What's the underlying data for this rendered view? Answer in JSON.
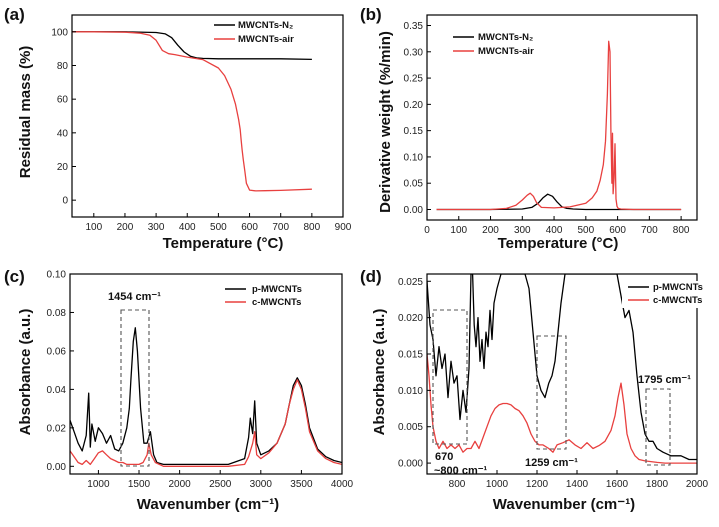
{
  "colors": {
    "black_series": "#000000",
    "red_series": "#e8403f"
  },
  "panels": [
    {
      "label": "(a)",
      "xlabel": "Temperature (°C)",
      "ylabel": "Residual mass (%)",
      "legend_1": "MWCNTs-N₂",
      "legend_2": "MWCNTs-air"
    },
    {
      "label": "(b)",
      "xlabel": "Temperature (°C)",
      "ylabel": "Derivative weight (%/min)",
      "legend_1": "MWCNTs-N₂",
      "legend_2": "MWCNTs-air"
    },
    {
      "label": "(c)",
      "xlabel": "Wavenumber (cm⁻¹)",
      "ylabel": "Absorbance (a.u.)",
      "legend_1": "p-MWCNTs",
      "legend_2": "c-MWCNTs",
      "annotation_1": "1454 cm⁻¹"
    },
    {
      "label": "(d)",
      "xlabel": "Wavenumber (cm⁻¹)",
      "ylabel": "Absorbance (a.u.)",
      "legend_1": "p-MWCNTs",
      "legend_2": "c-MWCNTs",
      "annotation_1": "670",
      "annotation_2": "~800 cm⁻¹",
      "annotation_3": "1259 cm⁻¹",
      "annotation_4": "1795 cm⁻¹"
    }
  ],
  "chart_data": [
    {
      "type": "line",
      "xlabel": "Temperature (°C)",
      "ylabel": "Residual mass (%)",
      "xlim": [
        30,
        900
      ],
      "ylim": [
        -10,
        110
      ],
      "xticks": [
        100,
        200,
        300,
        400,
        500,
        600,
        700,
        800,
        900
      ],
      "yticks": [
        0,
        20,
        40,
        60,
        80,
        100
      ],
      "legend_position": "top-right",
      "series": [
        {
          "name": "MWCNTs-N₂",
          "color": "#000000",
          "x": [
            30,
            100,
            200,
            300,
            330,
            350,
            370,
            390,
            410,
            430,
            450,
            500,
            600,
            700,
            800
          ],
          "y": [
            100,
            100,
            100,
            99.6,
            98.8,
            96.5,
            92,
            88,
            85.5,
            84.5,
            84.2,
            84,
            84,
            84,
            83.6
          ]
        },
        {
          "name": "MWCNTs-air",
          "color": "#e8403f",
          "x": [
            30,
            100,
            200,
            250,
            280,
            300,
            320,
            340,
            360,
            400,
            450,
            500,
            520,
            540,
            555,
            565,
            570,
            573,
            576,
            580,
            585,
            590,
            600,
            620,
            650,
            700,
            800
          ],
          "y": [
            100,
            100,
            99.8,
            99.2,
            98,
            95,
            89,
            87,
            86.5,
            85,
            83.5,
            78.5,
            74,
            66,
            57,
            48,
            42,
            36,
            30,
            24,
            17,
            10,
            6,
            5.5,
            5.6,
            5.8,
            6.5
          ]
        }
      ]
    },
    {
      "type": "line",
      "xlabel": "Temperature (°C)",
      "ylabel": "Derivative weight (%/min)",
      "xlim": [
        0,
        850
      ],
      "ylim": [
        -0.02,
        0.37
      ],
      "xticks": [
        0,
        100,
        200,
        300,
        400,
        500,
        600,
        700,
        800
      ],
      "yticks": [
        0.0,
        0.05,
        0.1,
        0.15,
        0.2,
        0.25,
        0.3,
        0.35
      ],
      "legend_position": "top-left",
      "series": [
        {
          "name": "MWCNTs-N₂",
          "color": "#000000",
          "x": [
            30,
            100,
            200,
            300,
            330,
            350,
            365,
            380,
            395,
            410,
            425,
            440,
            460,
            500,
            600,
            700,
            800
          ],
          "y": [
            0,
            0,
            0,
            0.001,
            0.004,
            0.012,
            0.022,
            0.029,
            0.025,
            0.014,
            0.005,
            0.002,
            0.001,
            0,
            0,
            0,
            0
          ]
        },
        {
          "name": "MWCNTs-air",
          "color": "#e8403f",
          "x": [
            30,
            100,
            200,
            250,
            280,
            300,
            315,
            325,
            335,
            345,
            360,
            400,
            450,
            500,
            520,
            535,
            545,
            555,
            562,
            568,
            572,
            576,
            579,
            582,
            584,
            586,
            589,
            592,
            595,
            598,
            602,
            610,
            650,
            700,
            800
          ],
          "y": [
            0,
            0,
            0,
            0.002,
            0.008,
            0.018,
            0.027,
            0.031,
            0.025,
            0.013,
            0.004,
            0.003,
            0.005,
            0.012,
            0.022,
            0.035,
            0.055,
            0.085,
            0.13,
            0.22,
            0.32,
            0.3,
            0.15,
            0.05,
            0.145,
            0.03,
            0.06,
            0.125,
            0.02,
            0.006,
            0.002,
            0.001,
            0,
            0,
            0
          ]
        }
      ]
    },
    {
      "type": "line",
      "xlabel": "Wavenumber (cm⁻¹)",
      "ylabel": "Absorbance (a.u.)",
      "xlim": [
        650,
        4000
      ],
      "ylim": [
        -0.004,
        0.1
      ],
      "xticks": [
        1000,
        1500,
        2000,
        2500,
        3000,
        3500,
        4000
      ],
      "yticks": [
        0.0,
        0.02,
        0.04,
        0.06,
        0.08,
        0.1
      ],
      "legend_position": "top-right",
      "annotations": [
        "1454 cm⁻¹"
      ],
      "series": [
        {
          "name": "p-MWCNTs",
          "color": "#000000",
          "x": [
            650,
            700,
            750,
            800,
            850,
            880,
            900,
            920,
            960,
            1000,
            1050,
            1100,
            1150,
            1200,
            1250,
            1300,
            1350,
            1380,
            1400,
            1430,
            1454,
            1480,
            1520,
            1560,
            1600,
            1640,
            1680,
            1720,
            1800,
            2000,
            2200,
            2400,
            2600,
            2800,
            2850,
            2870,
            2900,
            2925,
            2950,
            3000,
            3100,
            3200,
            3300,
            3350,
            3400,
            3450,
            3500,
            3550,
            3600,
            3700,
            3800,
            3900,
            4000
          ],
          "y": [
            0.024,
            0.018,
            0.012,
            0.008,
            0.016,
            0.038,
            0.01,
            0.022,
            0.013,
            0.02,
            0.017,
            0.012,
            0.016,
            0.009,
            0.008,
            0.012,
            0.02,
            0.03,
            0.045,
            0.065,
            0.072,
            0.06,
            0.03,
            0.012,
            0.012,
            0.018,
            0.006,
            0.002,
            0.001,
            0.001,
            0.001,
            0.001,
            0.001,
            0.004,
            0.015,
            0.025,
            0.017,
            0.034,
            0.012,
            0.006,
            0.008,
            0.012,
            0.022,
            0.032,
            0.042,
            0.046,
            0.042,
            0.032,
            0.02,
            0.009,
            0.005,
            0.003,
            0.002
          ]
        },
        {
          "name": "c-MWCNTs",
          "color": "#e8403f",
          "x": [
            650,
            700,
            750,
            800,
            850,
            900,
            950,
            1000,
            1050,
            1100,
            1150,
            1200,
            1250,
            1300,
            1350,
            1400,
            1450,
            1500,
            1550,
            1600,
            1620,
            1650,
            1700,
            1800,
            2000,
            2200,
            2400,
            2600,
            2800,
            2850,
            2900,
            2925,
            2950,
            3000,
            3100,
            3200,
            3300,
            3350,
            3400,
            3450,
            3500,
            3550,
            3600,
            3700,
            3800,
            3900,
            4000
          ],
          "y": [
            0.008,
            0.005,
            0.002,
            0.001,
            0.003,
            0.001,
            0.004,
            0.007,
            0.008,
            0.006,
            0.004,
            0.003,
            0.002,
            0.002,
            0.001,
            0.001,
            0.001,
            0.001,
            0.002,
            0.006,
            0.012,
            0.006,
            0.002,
            0,
            0,
            0,
            0,
            0,
            0.001,
            0.005,
            0.012,
            0.018,
            0.006,
            0.004,
            0.007,
            0.012,
            0.022,
            0.032,
            0.04,
            0.045,
            0.04,
            0.03,
            0.018,
            0.008,
            0.004,
            0.002,
            0.001
          ]
        }
      ]
    },
    {
      "type": "line",
      "xlabel": "Wavenumber (cm⁻¹)",
      "ylabel": "Absorbance (a.u.)",
      "xlim": [
        650,
        2000
      ],
      "ylim": [
        -0.0015,
        0.026
      ],
      "xticks": [
        800,
        1000,
        1200,
        1400,
        1600,
        1800,
        2000
      ],
      "yticks": [
        0.0,
        0.005,
        0.01,
        0.015,
        0.02,
        0.025
      ],
      "legend_position": "top-right",
      "annotations": [
        "670",
        "~800 cm⁻¹",
        "1259 cm⁻¹",
        "1795 cm⁻¹"
      ],
      "series": [
        {
          "name": "p-MWCNTs",
          "color": "#000000",
          "x": [
            650,
            665,
            680,
            695,
            710,
            725,
            740,
            755,
            770,
            785,
            800,
            815,
            830,
            845,
            860,
            870,
            878,
            886,
            895,
            905,
            915,
            925,
            935,
            945,
            955,
            965,
            975,
            985,
            1000,
            1020,
            1040,
            1060,
            1080,
            1100,
            1120,
            1140,
            1160,
            1180,
            1200,
            1220,
            1240,
            1259,
            1275,
            1290,
            1305,
            1320,
            1340,
            1360,
            1380,
            1400,
            1430,
            1460,
            1500,
            1540,
            1580,
            1600,
            1620,
            1640,
            1660,
            1680,
            1700,
            1720,
            1740,
            1760,
            1780,
            1800,
            1830,
            1870,
            1920,
            1960,
            2000
          ],
          "y": [
            0.025,
            0.019,
            0.017,
            0.012,
            0.016,
            0.013,
            0.015,
            0.009,
            0.014,
            0.011,
            0.012,
            0.006,
            0.01,
            0.007,
            0.013,
            0.026,
            0.026,
            0.019,
            0.016,
            0.02,
            0.014,
            0.017,
            0.013,
            0.018,
            0.016,
            0.021,
            0.017,
            0.022,
            0.024,
            0.026,
            0.026,
            0.026,
            0.026,
            0.026,
            0.026,
            0.026,
            0.024,
            0.018,
            0.012,
            0.01,
            0.009,
            0.011,
            0.012,
            0.014,
            0.018,
            0.022,
            0.026,
            0.026,
            0.026,
            0.026,
            0.026,
            0.026,
            0.026,
            0.026,
            0.026,
            0.026,
            0.023,
            0.02,
            0.021,
            0.018,
            0.012,
            0.007,
            0.004,
            0.003,
            0.003,
            0.002,
            0.0015,
            0.001,
            0.001,
            0.0005,
            0.0005
          ]
        },
        {
          "name": "c-MWCNTs",
          "color": "#e8403f",
          "x": [
            650,
            660,
            670,
            680,
            695,
            710,
            730,
            750,
            770,
            790,
            810,
            830,
            850,
            870,
            890,
            910,
            930,
            950,
            970,
            990,
            1010,
            1030,
            1050,
            1070,
            1090,
            1110,
            1130,
            1150,
            1170,
            1190,
            1210,
            1230,
            1259,
            1280,
            1300,
            1330,
            1360,
            1390,
            1420,
            1450,
            1480,
            1510,
            1540,
            1570,
            1590,
            1605,
            1620,
            1635,
            1650,
            1670,
            1690,
            1710,
            1740,
            1770,
            1800,
            1840,
            1880,
            1920,
            1960,
            2000
          ],
          "y": [
            0.015,
            0.012,
            0.008,
            0.005,
            0.003,
            0.002,
            0.003,
            0.002,
            0.0025,
            0.002,
            0.0025,
            0.0015,
            0.002,
            0.002,
            0.003,
            0.002,
            0.0035,
            0.005,
            0.0065,
            0.0075,
            0.008,
            0.0082,
            0.0082,
            0.008,
            0.0075,
            0.0072,
            0.0065,
            0.0055,
            0.004,
            0.003,
            0.0025,
            0.0025,
            0.002,
            0.0015,
            0.0025,
            0.0028,
            0.0032,
            0.0025,
            0.002,
            0.0028,
            0.002,
            0.0024,
            0.003,
            0.0045,
            0.0065,
            0.009,
            0.011,
            0.008,
            0.004,
            0.002,
            0.001,
            0.0005,
            0.0003,
            0.0002,
            0.0001,
            0,
            0,
            0,
            0,
            0
          ]
        }
      ]
    }
  ]
}
